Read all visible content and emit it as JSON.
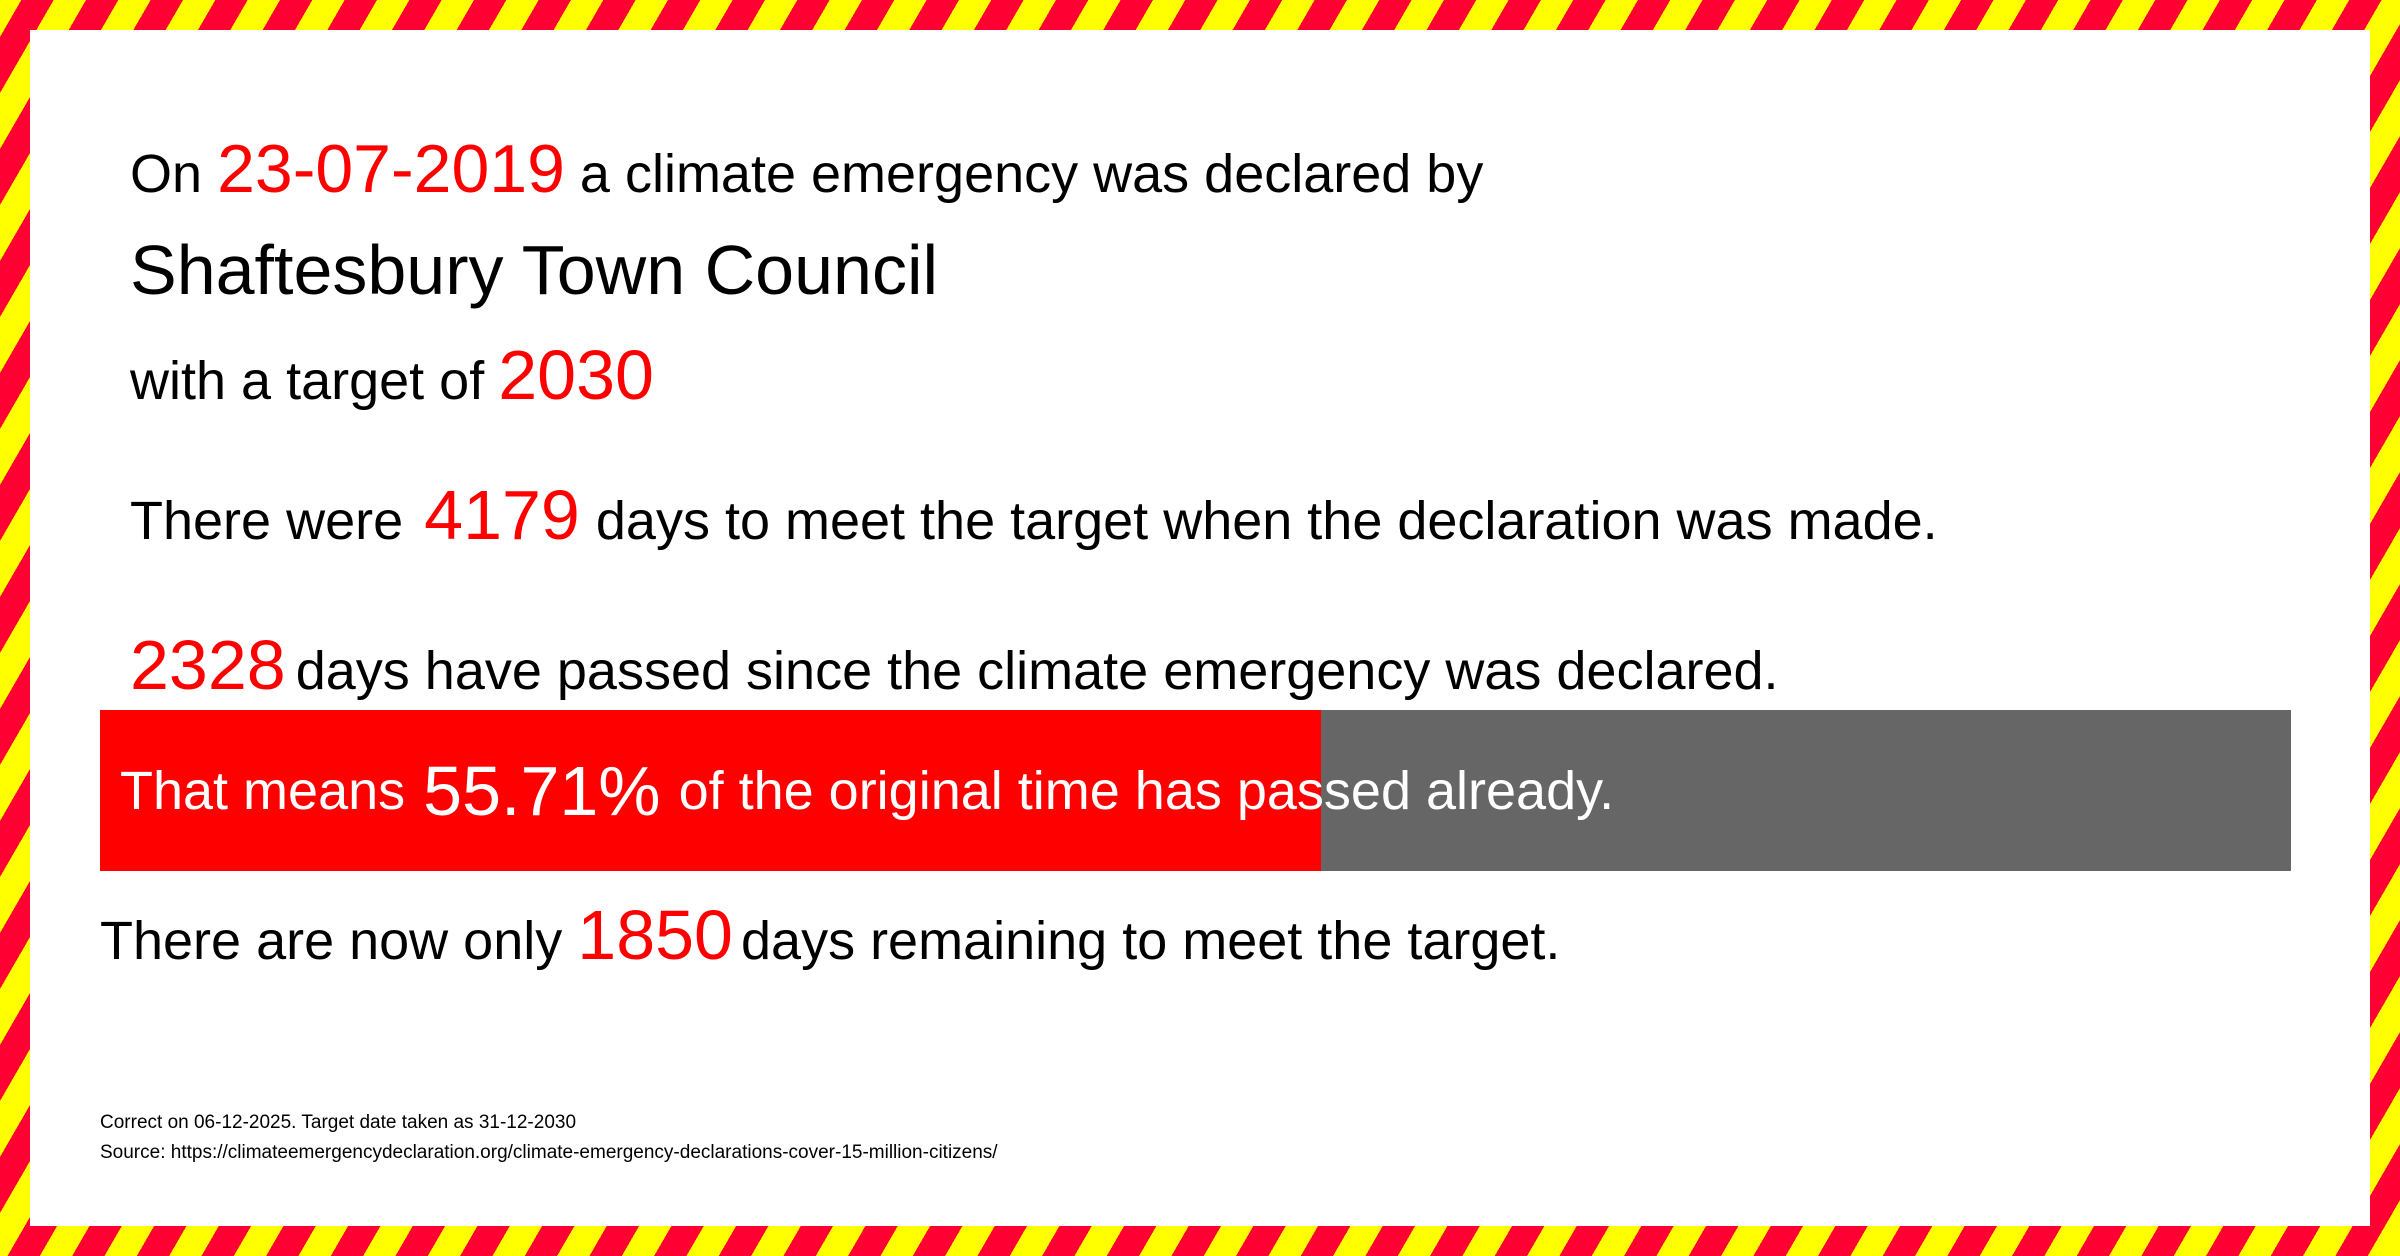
{
  "declaration": {
    "prefix": "On",
    "date": "23-07-2019",
    "suffix": "a climate emergency was declared by",
    "council": "Shaftesbury Town Council",
    "target_prefix": "with a target of",
    "target_year": "2030"
  },
  "stats": {
    "total_prefix": "There were",
    "total_days": "4179",
    "total_suffix": "days to meet the target when the declaration was made.",
    "passed_days": "2328",
    "passed_suffix": "days have passed since the climate emergency was declared.",
    "progress_prefix": "That means",
    "progress_percent_label": "55.71%",
    "progress_suffix": "of the original time has passed already.",
    "progress_fraction": 0.5571,
    "remaining_prefix": "There are now only",
    "remaining_days": "1850",
    "remaining_suffix": "days remaining to meet the target."
  },
  "footer": {
    "correct_on": "Correct on 06-12-2025. Target date taken as 31-12-2030",
    "source": "Source: https://climateemergencydeclaration.org/climate-emergency-declarations-cover-15-million-citizens/"
  },
  "colors": {
    "highlight": "#ff0000",
    "bar_remaining": "#666666",
    "stripe_red": "#ff0033",
    "stripe_yellow": "#ffff00"
  }
}
